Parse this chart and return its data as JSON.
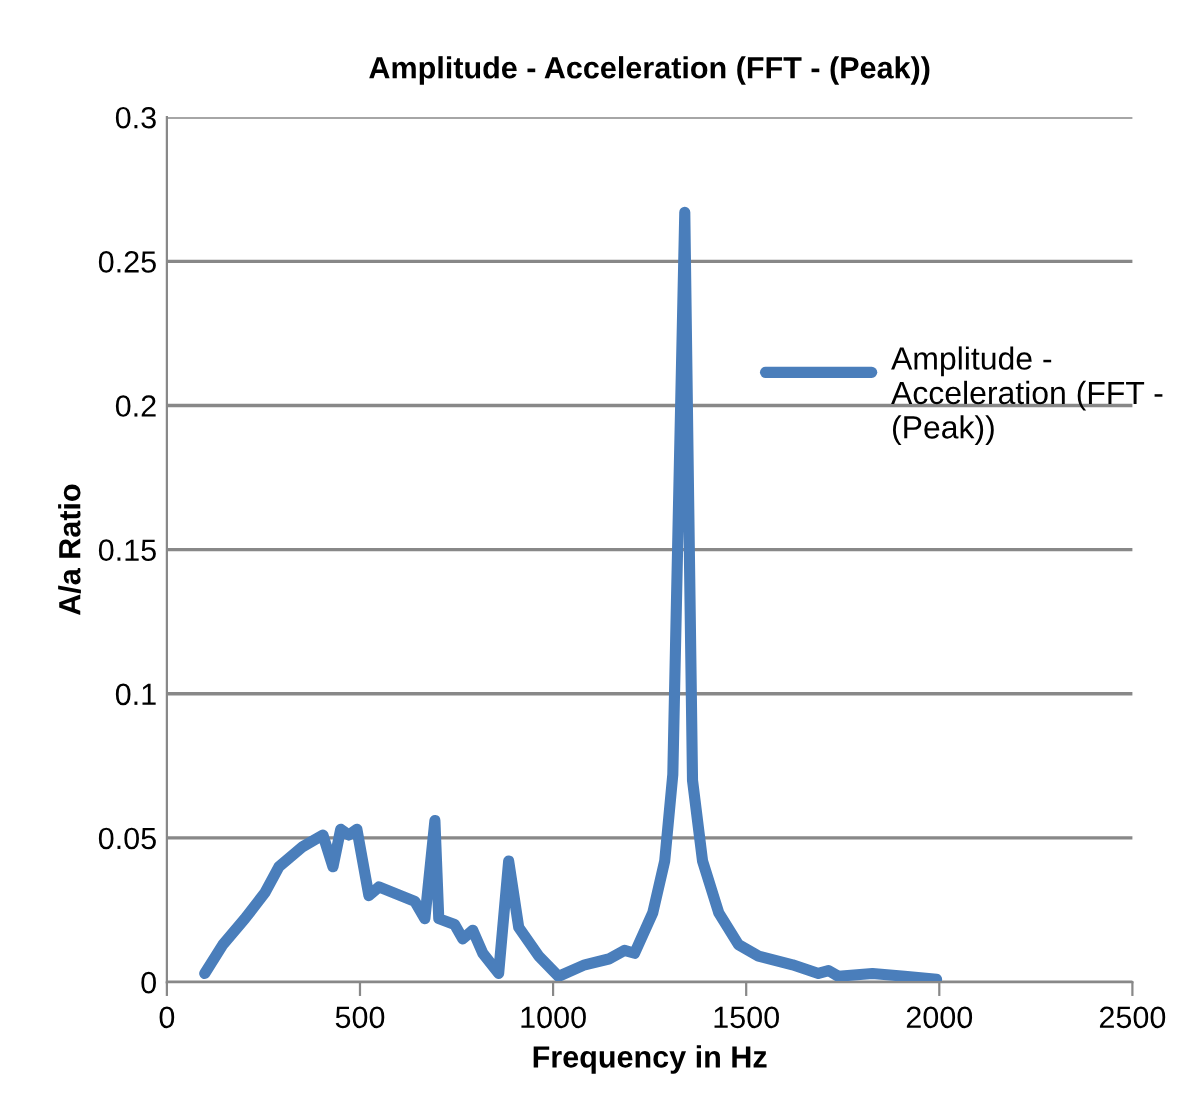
{
  "chart_data": {
    "type": "line",
    "title": "Amplitude - Acceleration (FFT - (Peak))",
    "xlabel": "Frequency in Hz",
    "ylabel": "A/a Ratio",
    "series": [
      {
        "name": "Amplitude - Acceleration (FFT - (Peak))",
        "color": "#4a7ebb",
        "x": [
          98,
          145,
          202,
          254,
          290,
          352,
          404,
          430,
          450,
          471,
          492,
          523,
          549,
          642,
          668,
          694,
          704,
          745,
          766,
          792,
          818,
          859,
          885,
          911,
          963,
          1014,
          1082,
          1144,
          1185,
          1211,
          1258,
          1289,
          1310,
          1325,
          1341,
          1351,
          1361,
          1387,
          1429,
          1480,
          1532,
          1620,
          1687,
          1713,
          1739,
          1827,
          1910,
          1993
        ],
        "values": [
          0.003,
          0.013,
          0.022,
          0.031,
          0.04,
          0.047,
          0.051,
          0.04,
          0.053,
          0.051,
          0.053,
          0.03,
          0.033,
          0.028,
          0.022,
          0.056,
          0.022,
          0.02,
          0.015,
          0.018,
          0.01,
          0.003,
          0.042,
          0.019,
          0.009,
          0.002,
          0.006,
          0.008,
          0.011,
          0.01,
          0.024,
          0.042,
          0.072,
          0.167,
          0.267,
          0.167,
          0.07,
          0.042,
          0.024,
          0.013,
          0.009,
          0.006,
          0.003,
          0.004,
          0.002,
          0.003,
          0.002,
          0.001
        ]
      }
    ],
    "xlim": [
      0,
      2500
    ],
    "xticks": [
      0,
      500,
      1000,
      1500,
      2000,
      2500
    ],
    "ylim": [
      0,
      0.3
    ],
    "yticks": [
      0,
      0.05,
      0.1,
      0.15,
      0.2,
      0.25,
      0.3
    ],
    "grid": "y",
    "legend": "right"
  }
}
